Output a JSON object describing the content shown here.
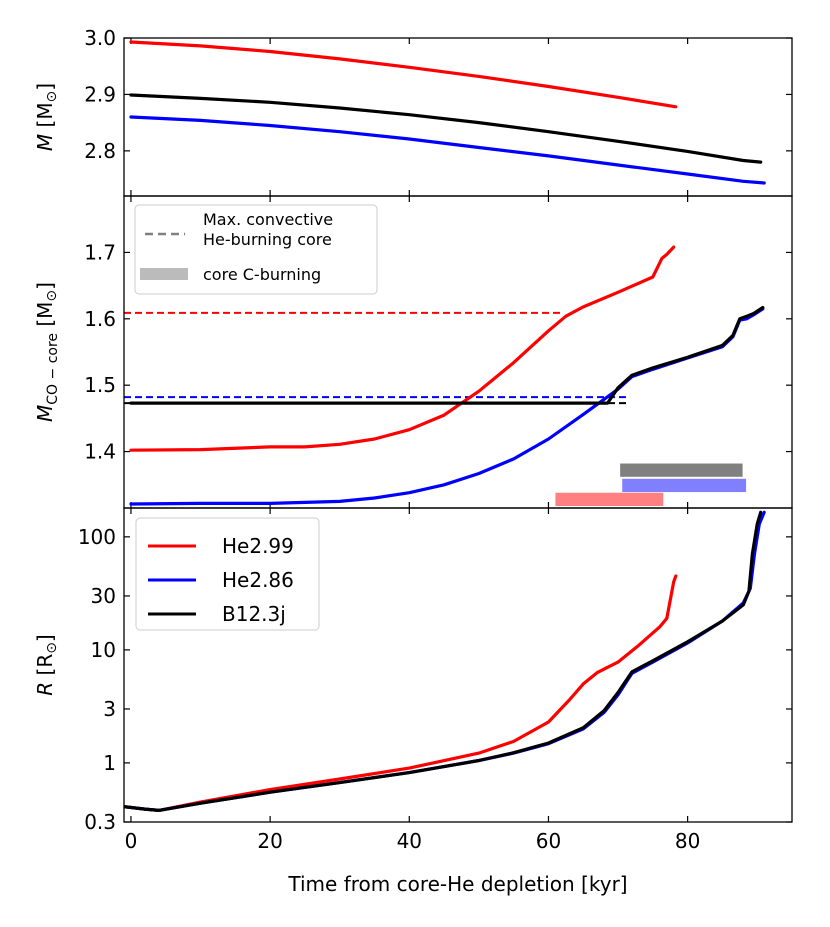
{
  "chart_data": {
    "type": "line",
    "shared_x": {
      "label": "Time from core-He depletion [kyr]",
      "xlim": [
        -1,
        95
      ],
      "ticks": [
        0,
        20,
        40,
        60,
        80
      ]
    },
    "colors": {
      "He2.99": "#ff0000",
      "He2.86": "#0000ff",
      "B12.3j": "#000000"
    },
    "legend": {
      "entries": [
        "He2.99",
        "He2.86",
        "B12.3j"
      ],
      "placement": "top-left of bottom panel"
    },
    "panels": [
      {
        "id": "mass",
        "ylabel_main": "M",
        "ylabel_unit": " [M",
        "ylabel_sun": "⊙",
        "ylabel_close": "]",
        "yscale": "linear",
        "ylim": [
          2.72,
          3.0
        ],
        "yticks": [
          2.8,
          2.9,
          3.0
        ],
        "ytick_labels": [
          "2.8",
          "2.9",
          "3.0"
        ],
        "series": [
          {
            "name": "He2.99",
            "x": [
              0,
              10,
              20,
              30,
              40,
              50,
              60,
              70,
              78.3
            ],
            "y": [
              2.993,
              2.986,
              2.976,
              2.963,
              2.948,
              2.932,
              2.914,
              2.895,
              2.878
            ]
          },
          {
            "name": "He2.86",
            "x": [
              0,
              10,
              20,
              30,
              40,
              50,
              60,
              70,
              80,
              88,
              91
            ],
            "y": [
              2.86,
              2.854,
              2.845,
              2.834,
              2.821,
              2.806,
              2.791,
              2.775,
              2.759,
              2.746,
              2.743
            ]
          },
          {
            "name": "B12.3j",
            "x": [
              0,
              10,
              20,
              30,
              40,
              50,
              60,
              70,
              80,
              88,
              90.5
            ],
            "y": [
              2.899,
              2.893,
              2.886,
              2.876,
              2.864,
              2.85,
              2.834,
              2.817,
              2.799,
              2.783,
              2.78
            ]
          }
        ]
      },
      {
        "id": "co-core",
        "ylabel_main": "M",
        "ylabel_sub": "CO − core",
        "ylabel_unit": " [M",
        "ylabel_sun": "⊙",
        "ylabel_close": "]",
        "yscale": "linear",
        "ylim": [
          1.315,
          1.785
        ],
        "yticks": [
          1.4,
          1.5,
          1.6,
          1.7
        ],
        "ytick_labels": [
          "1.4",
          "1.5",
          "1.6",
          "1.7"
        ],
        "series": [
          {
            "name": "He2.99",
            "x": [
              0,
              10,
              20,
              25,
              30,
              35,
              40,
              45,
              50,
              55,
              60,
              62.5,
              65,
              70,
              75,
              76.3,
              77,
              78
            ],
            "y": [
              1.402,
              1.403,
              1.407,
              1.407,
              1.411,
              1.419,
              1.433,
              1.455,
              1.491,
              1.534,
              1.582,
              1.604,
              1.618,
              1.64,
              1.663,
              1.691,
              1.697,
              1.708
            ]
          },
          {
            "name": "He2.86",
            "x": [
              0,
              10,
              20,
              30,
              35,
              40,
              45,
              50,
              55,
              60,
              65,
              70,
              72,
              75,
              80,
              85,
              86.5,
              87.5,
              88.5,
              89.5,
              90.8
            ],
            "y": [
              1.321,
              1.322,
              1.322,
              1.325,
              1.33,
              1.338,
              1.35,
              1.367,
              1.389,
              1.419,
              1.456,
              1.494,
              1.513,
              1.524,
              1.541,
              1.558,
              1.573,
              1.598,
              1.6,
              1.606,
              1.615
            ]
          },
          {
            "name": "B12.3j",
            "x": [
              0,
              60,
              68.5,
              70,
              72,
              75,
              80,
              85,
              86.5,
              87.5,
              88.5,
              89.5,
              90.8
            ],
            "y": [
              1.473,
              1.473,
              1.473,
              1.496,
              1.515,
              1.526,
              1.542,
              1.56,
              1.575,
              1.6,
              1.604,
              1.608,
              1.617
            ]
          }
        ],
        "dashed_lines": [
          {
            "name": "He2.99",
            "y": 1.609,
            "x": [
              -1,
              61.8
            ]
          },
          {
            "name": "He2.86",
            "y": 1.482,
            "x": [
              -1,
              71.3
            ]
          },
          {
            "name": "B12.3j",
            "y": 1.473,
            "x": [
              -1,
              71.3
            ]
          }
        ],
        "bars": [
          {
            "name": "B12.3j",
            "x": [
              70.3,
              87.9
            ],
            "y": [
              1.362,
              1.382
            ],
            "color": "#808080"
          },
          {
            "name": "He2.86",
            "x": [
              70.6,
              88.4
            ],
            "y": [
              1.339,
              1.359
            ],
            "color": "#8080ff"
          },
          {
            "name": "He2.99",
            "x": [
              61.0,
              76.5
            ],
            "y": [
              1.318,
              1.338
            ],
            "color": "#ff8080"
          }
        ],
        "legend": {
          "dashed_label_line1": "Max. convective",
          "dashed_label_line2": "He-burning core",
          "bar_label": "core C-burning",
          "placement": "top-left"
        }
      },
      {
        "id": "radius",
        "ylabel_main": "R",
        "ylabel_unit": " [R",
        "ylabel_sun": "⊙",
        "ylabel_close": "]",
        "yscale": "log",
        "ylim": [
          0.3,
          180
        ],
        "yticks": [
          0.3,
          1,
          3,
          10,
          30,
          100
        ],
        "ytick_labels": [
          "0.3",
          "1",
          "3",
          "10",
          "30",
          "100"
        ],
        "series": [
          {
            "name": "He2.99",
            "x": [
              -1,
              2,
              4,
              10,
              20,
              30,
              40,
              50,
              55,
              60,
              63,
              65,
              67,
              70,
              73,
              76,
              77,
              78,
              78.3
            ],
            "y": [
              0.41,
              0.39,
              0.38,
              0.45,
              0.58,
              0.72,
              0.9,
              1.22,
              1.55,
              2.3,
              3.6,
              5.0,
              6.3,
              7.8,
              11,
              16,
              19,
              40,
              45
            ]
          },
          {
            "name": "He2.86",
            "x": [
              -1,
              2,
              4,
              10,
              20,
              30,
              40,
              50,
              55,
              60,
              65,
              68,
              70,
              72,
              75,
              80,
              85,
              88,
              89,
              89.6,
              90.3,
              91
            ],
            "y": [
              0.41,
              0.39,
              0.38,
              0.44,
              0.55,
              0.67,
              0.82,
              1.05,
              1.22,
              1.48,
              2.0,
              2.8,
              4.0,
              6.2,
              7.8,
              11.5,
              18,
              26,
              35,
              70,
              130,
              165
            ]
          },
          {
            "name": "B12.3j",
            "x": [
              -1,
              2,
              4,
              10,
              20,
              30,
              40,
              50,
              55,
              60,
              65,
              68,
              70,
              72,
              75,
              80,
              85,
              88,
              88.8,
              89.3,
              90,
              90.5
            ],
            "y": [
              0.41,
              0.39,
              0.38,
              0.44,
              0.55,
              0.67,
              0.82,
              1.05,
              1.23,
              1.5,
              2.05,
              2.9,
              4.2,
              6.4,
              8.0,
              11.8,
              18,
              25,
              33,
              70,
              130,
              165
            ]
          }
        ]
      }
    ]
  }
}
